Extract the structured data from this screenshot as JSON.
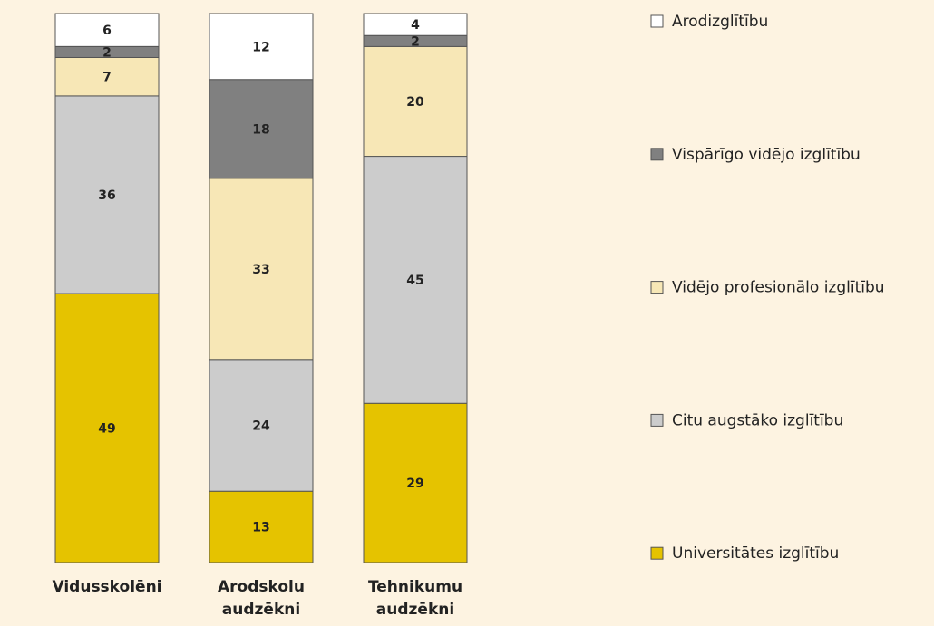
{
  "chart_data": {
    "type": "stacked_bar",
    "categories": [
      "Vidusskolēni",
      "Arodskolu audzēkni",
      "Tehnikumu audzēkni"
    ],
    "series": [
      {
        "name": "Universitātes izglītību",
        "color": "#e5c300",
        "values": [
          49,
          13,
          29
        ]
      },
      {
        "name": "Citu augstāko izglītību",
        "color": "#cccccc",
        "values": [
          36,
          24,
          45
        ]
      },
      {
        "name": "Vidējo profesionālo izglītību",
        "color": "#f7e7b6",
        "values": [
          7,
          33,
          20
        ]
      },
      {
        "name": "Vispārīgo vidējo izglītību",
        "color": "#808080",
        "values": [
          2,
          18,
          2
        ]
      },
      {
        "name": "Arodizglītību",
        "color": "#ffffff",
        "values": [
          6,
          12,
          4
        ]
      }
    ],
    "legend": "right"
  }
}
